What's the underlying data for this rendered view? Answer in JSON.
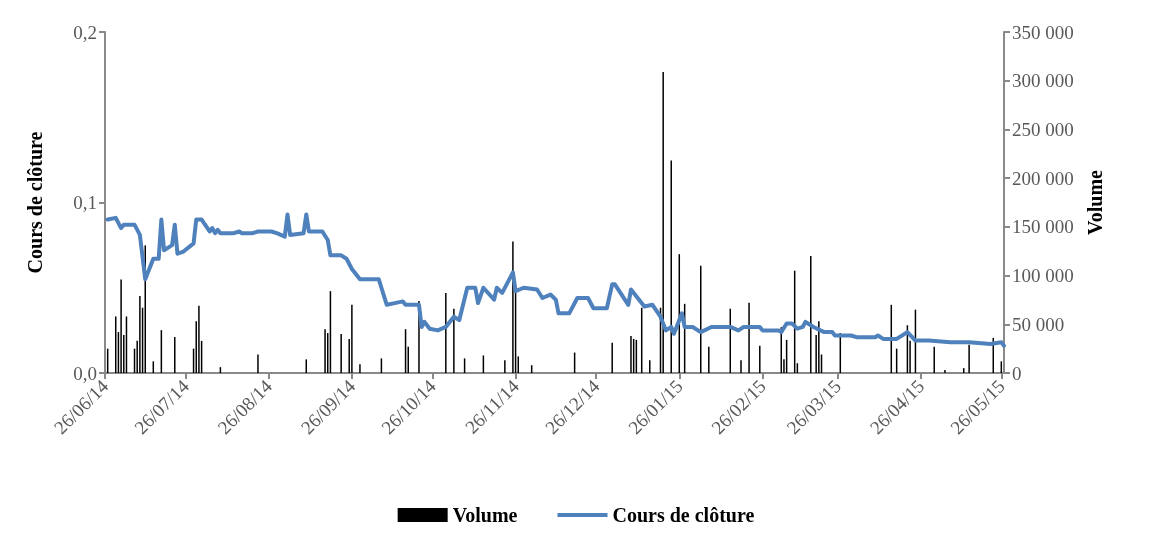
{
  "chart_data": {
    "type": "bar",
    "ylabel": "Cours de clôture",
    "y2label": "Volume",
    "legend": "bottom",
    "grid": false,
    "xlim": [
      "2014-06-26",
      "2015-05-27"
    ],
    "xticks": [
      {
        "value": "2014-06-26",
        "label": "26/06/14"
      },
      {
        "value": "2014-07-26",
        "label": "26/07/14"
      },
      {
        "value": "2014-08-26",
        "label": "26/08/14"
      },
      {
        "value": "2014-09-26",
        "label": "26/09/14"
      },
      {
        "value": "2014-10-26",
        "label": "26/10/14"
      },
      {
        "value": "2014-11-26",
        "label": "26/11/14"
      },
      {
        "value": "2014-12-26",
        "label": "26/12/14"
      },
      {
        "value": "2015-01-26",
        "label": "26/01/15"
      },
      {
        "value": "2015-02-26",
        "label": "26/02/15"
      },
      {
        "value": "2015-03-26",
        "label": "26/03/15"
      },
      {
        "value": "2015-04-26",
        "label": "26/04/15"
      },
      {
        "value": "2015-05-26",
        "label": "26/05/15"
      }
    ],
    "ylim": [
      0,
      0.2
    ],
    "yticks": [
      {
        "value": 0,
        "label": "0,0"
      },
      {
        "value": 0.1,
        "label": "0,1"
      },
      {
        "value": 0.2,
        "label": "0,2"
      }
    ],
    "y2lim": [
      0,
      350000
    ],
    "y2ticks": [
      {
        "value": 0,
        "label": "0"
      },
      {
        "value": 50000,
        "label": "50 000"
      },
      {
        "value": 100000,
        "label": "100 000"
      },
      {
        "value": 150000,
        "label": "150 000"
      },
      {
        "value": 200000,
        "label": "200 000"
      },
      {
        "value": 250000,
        "label": "250 000"
      },
      {
        "value": 300000,
        "label": "300 000"
      },
      {
        "value": 350000,
        "label": "350 000"
      }
    ],
    "series": [
      {
        "name": "Volume",
        "axis": "y2",
        "color": "#000000",
        "x": [
          "2014-06-27",
          "2014-06-30",
          "2014-07-01",
          "2014-07-02",
          "2014-07-03",
          "2014-07-04",
          "2014-07-07",
          "2014-07-08",
          "2014-07-09",
          "2014-07-10",
          "2014-07-11",
          "2014-07-14",
          "2014-07-17",
          "2014-07-22",
          "2014-07-29",
          "2014-07-30",
          "2014-07-31",
          "2014-08-01",
          "2014-08-08",
          "2014-08-22",
          "2014-09-09",
          "2014-09-16",
          "2014-09-17",
          "2014-09-18",
          "2014-09-22",
          "2014-09-25",
          "2014-09-26",
          "2014-09-29",
          "2014-10-07",
          "2014-10-16",
          "2014-10-17",
          "2014-10-21",
          "2014-10-31",
          "2014-11-03",
          "2014-11-07",
          "2014-11-14",
          "2014-11-22",
          "2014-11-25",
          "2014-11-26",
          "2014-11-27",
          "2014-12-02",
          "2014-12-18",
          "2015-01-01",
          "2015-01-08",
          "2015-01-09",
          "2015-01-10",
          "2015-01-12",
          "2015-01-15",
          "2015-01-19",
          "2015-01-20",
          "2015-01-23",
          "2015-01-26",
          "2015-01-28",
          "2015-02-03",
          "2015-02-06",
          "2015-02-14",
          "2015-02-18",
          "2015-02-21",
          "2015-02-25",
          "2015-03-05",
          "2015-03-06",
          "2015-03-07",
          "2015-03-10",
          "2015-03-11",
          "2015-03-16",
          "2015-03-18",
          "2015-03-19",
          "2015-03-20",
          "2015-03-27",
          "2015-04-15",
          "2015-04-17",
          "2015-04-21",
          "2015-04-22",
          "2015-04-24",
          "2015-05-01",
          "2015-05-05",
          "2015-05-12",
          "2015-05-14",
          "2015-05-23",
          "2015-05-26"
        ],
        "values": [
          25000,
          58000,
          42000,
          96000,
          39000,
          58000,
          25000,
          33000,
          79000,
          67000,
          131000,
          12000,
          44000,
          37000,
          25000,
          53000,
          69000,
          33000,
          6000,
          19000,
          14000,
          45000,
          41000,
          84000,
          40000,
          35000,
          70000,
          9000,
          15000,
          45000,
          27000,
          74000,
          82000,
          66000,
          15000,
          18000,
          13000,
          135000,
          87000,
          17000,
          8000,
          21000,
          31000,
          38000,
          35000,
          34000,
          67000,
          13000,
          67000,
          309000,
          218000,
          122000,
          71000,
          110000,
          27000,
          66000,
          13000,
          72000,
          28000,
          47000,
          14000,
          34000,
          105000,
          10000,
          120000,
          39000,
          53000,
          19000,
          41000,
          70000,
          25000,
          49000,
          33000,
          65000,
          27000,
          3000,
          5000,
          29000,
          36000,
          12000
        ]
      },
      {
        "name": "Cours de clôture",
        "type": "line",
        "color": "#4f81bd",
        "marker": "none",
        "line_style": "solid",
        "x": [
          "2014-06-27",
          "2014-06-30",
          "2014-07-02",
          "2014-07-03",
          "2014-07-07",
          "2014-07-09",
          "2014-07-11",
          "2014-07-14",
          "2014-07-16",
          "2014-07-17",
          "2014-07-18",
          "2014-07-21",
          "2014-07-22",
          "2014-07-23",
          "2014-07-25",
          "2014-07-29",
          "2014-07-30",
          "2014-08-01",
          "2014-08-04",
          "2014-08-05",
          "2014-08-06",
          "2014-08-07",
          "2014-08-08",
          "2014-08-13",
          "2014-08-15",
          "2014-08-16",
          "2014-08-20",
          "2014-08-22",
          "2014-08-27",
          "2014-08-29",
          "2014-09-01",
          "2014-09-02",
          "2014-09-03",
          "2014-09-08",
          "2014-09-09",
          "2014-09-10",
          "2014-09-15",
          "2014-09-17",
          "2014-09-18",
          "2014-09-22",
          "2014-09-24",
          "2014-09-26",
          "2014-09-29",
          "2014-10-01",
          "2014-10-06",
          "2014-10-07",
          "2014-10-09",
          "2014-10-12",
          "2014-10-15",
          "2014-10-16",
          "2014-10-21",
          "2014-10-22",
          "2014-10-23",
          "2014-10-25",
          "2014-10-28",
          "2014-10-31",
          "2014-11-03",
          "2014-11-05",
          "2014-11-08",
          "2014-11-11",
          "2014-11-12",
          "2014-11-14",
          "2014-11-18",
          "2014-11-19",
          "2014-11-21",
          "2014-11-25",
          "2014-11-26",
          "2014-11-29",
          "2014-12-04",
          "2014-12-06",
          "2014-12-09",
          "2014-12-11",
          "2014-12-12",
          "2014-12-16",
          "2014-12-19",
          "2014-12-23",
          "2014-12-25",
          "2014-12-30",
          "2015-01-01",
          "2015-01-02",
          "2015-01-07",
          "2015-01-08",
          "2015-01-13",
          "2015-01-16",
          "2015-01-19",
          "2015-01-21",
          "2015-01-23",
          "2015-01-24",
          "2015-01-27",
          "2015-01-28",
          "2015-01-31",
          "2015-02-03",
          "2015-02-07",
          "2015-02-14",
          "2015-02-17",
          "2015-02-19",
          "2015-02-25",
          "2015-02-26",
          "2015-03-04",
          "2015-03-05",
          "2015-03-07",
          "2015-03-09",
          "2015-03-11",
          "2015-03-13",
          "2015-03-14",
          "2015-03-17",
          "2015-03-21",
          "2015-03-24",
          "2015-03-25",
          "2015-03-28",
          "2015-03-31",
          "2015-04-02",
          "2015-04-09",
          "2015-04-10",
          "2015-04-12",
          "2015-04-17",
          "2015-04-21",
          "2015-04-24",
          "2015-04-29",
          "2015-05-07",
          "2015-05-13",
          "2015-05-14",
          "2015-05-22",
          "2015-05-26",
          "2015-05-27"
        ],
        "values": [
          0.09,
          0.091,
          0.085,
          0.087,
          0.087,
          0.081,
          0.055,
          0.067,
          0.067,
          0.09,
          0.072,
          0.075,
          0.087,
          0.07,
          0.071,
          0.076,
          0.09,
          0.09,
          0.083,
          0.085,
          0.082,
          0.084,
          0.082,
          0.082,
          0.083,
          0.082,
          0.082,
          0.083,
          0.083,
          0.082,
          0.08,
          0.093,
          0.081,
          0.082,
          0.093,
          0.083,
          0.083,
          0.078,
          0.069,
          0.069,
          0.067,
          0.061,
          0.055,
          0.055,
          0.055,
          0.05,
          0.04,
          0.041,
          0.042,
          0.04,
          0.04,
          0.027,
          0.03,
          0.026,
          0.025,
          0.027,
          0.033,
          0.031,
          0.05,
          0.05,
          0.041,
          0.05,
          0.043,
          0.05,
          0.047,
          0.059,
          0.048,
          0.05,
          0.049,
          0.044,
          0.046,
          0.043,
          0.035,
          0.035,
          0.044,
          0.044,
          0.038,
          0.038,
          0.052,
          0.052,
          0.04,
          0.049,
          0.039,
          0.04,
          0.033,
          0.025,
          0.027,
          0.023,
          0.035,
          0.027,
          0.027,
          0.024,
          0.027,
          0.027,
          0.025,
          0.027,
          0.027,
          0.025,
          0.025,
          0.024,
          0.029,
          0.029,
          0.026,
          0.027,
          0.03,
          0.027,
          0.024,
          0.024,
          0.022,
          0.022,
          0.022,
          0.021,
          0.021,
          0.022,
          0.02,
          0.02,
          0.024,
          0.019,
          0.019,
          0.018,
          0.018,
          0.018,
          0.017,
          0.018,
          0.016
        ]
      }
    ]
  }
}
